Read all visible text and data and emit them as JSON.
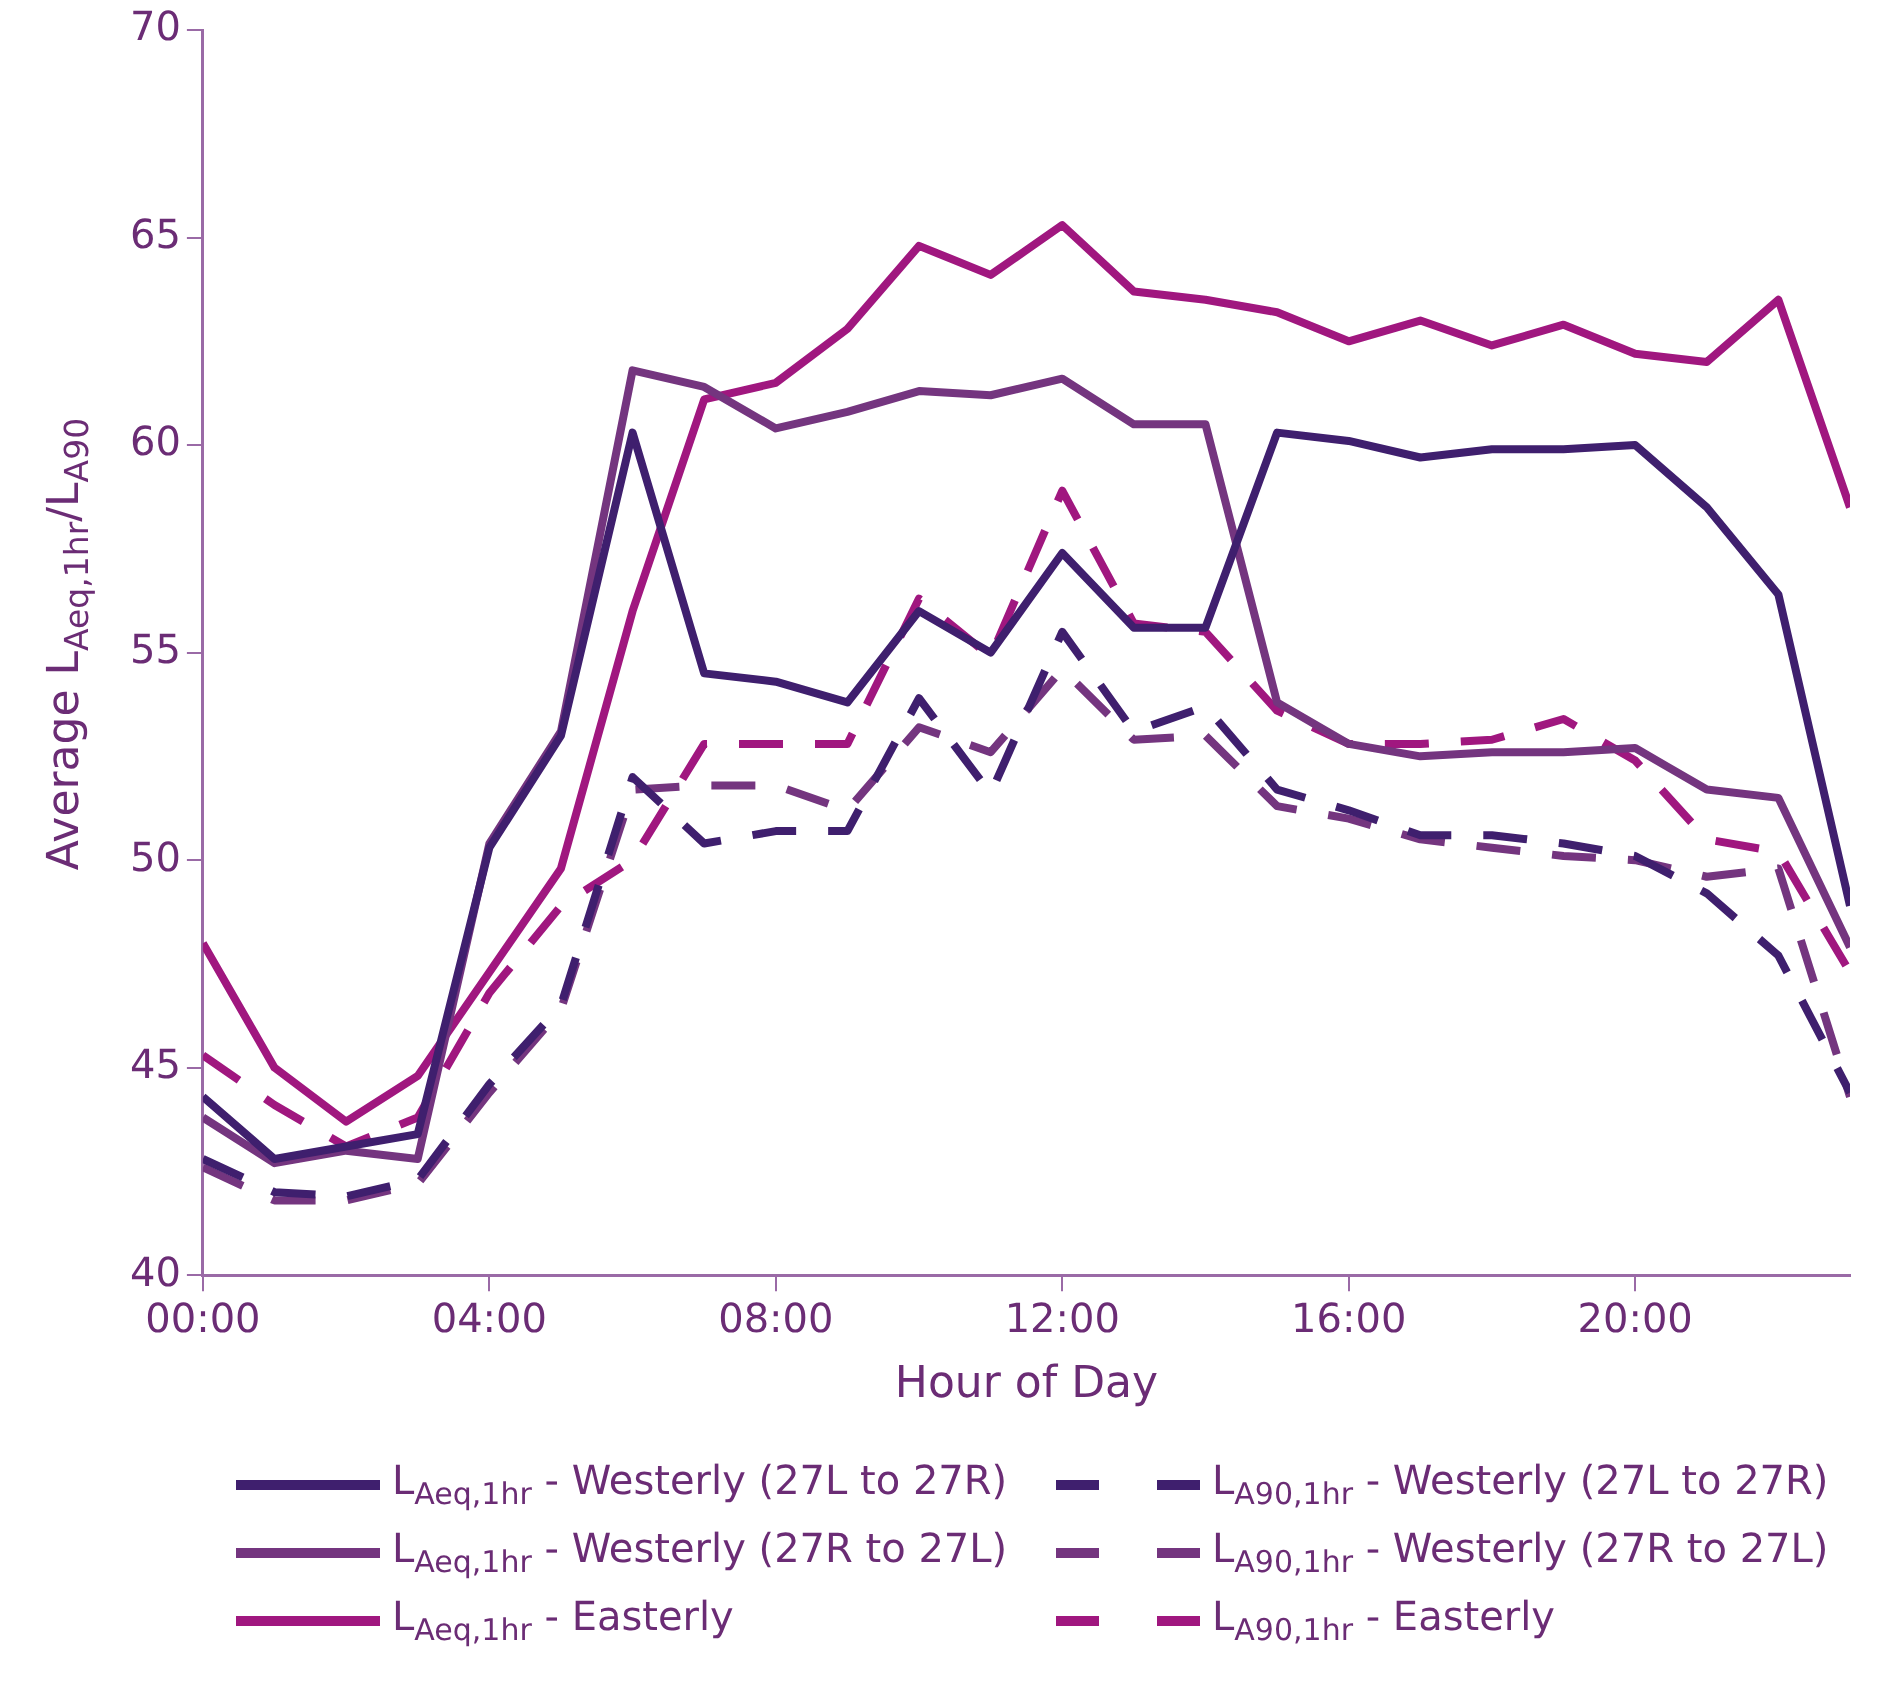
{
  "chart_data": {
    "type": "line",
    "xlabel": "Hour of Day",
    "ylabel": "Average L$_{Aeq,1hr}$/L$_{A90}$",
    "x": [
      0,
      1,
      2,
      3,
      4,
      5,
      6,
      7,
      8,
      9,
      10,
      11,
      12,
      13,
      14,
      15,
      16,
      17,
      18,
      19,
      20,
      21,
      22,
      23
    ],
    "xlim": [
      0,
      23
    ],
    "xticks": [
      {
        "value": 0,
        "label": "00:00"
      },
      {
        "value": 4,
        "label": "04:00"
      },
      {
        "value": 8,
        "label": "08:00"
      },
      {
        "value": 12,
        "label": "12:00"
      },
      {
        "value": 16,
        "label": "16:00"
      },
      {
        "value": 20,
        "label": "20:00"
      }
    ],
    "ylim": [
      40,
      70
    ],
    "yticks": [
      40,
      45,
      50,
      55,
      60,
      65,
      70
    ],
    "grid": false,
    "legend": "bottom",
    "marker": "none",
    "series": [
      {
        "name": "L$_{Aeq,1hr}$ - Westerly (27L to 27R)",
        "color": "#3f1f6e",
        "line_style": "solid",
        "values": [
          44.3,
          42.8,
          43.1,
          43.4,
          50.3,
          53.0,
          60.3,
          54.5,
          54.3,
          53.8,
          56.0,
          55.0,
          57.4,
          55.6,
          55.6,
          60.3,
          60.1,
          59.7,
          59.9,
          59.9,
          60.0,
          58.5,
          56.4,
          48.9
        ]
      },
      {
        "name": "L$_{A90,1hr}$ - Westerly (27L to 27R)",
        "color": "#3f1f6e",
        "line_style": "dashed",
        "values": [
          42.8,
          42.0,
          41.9,
          42.3,
          44.6,
          46.5,
          52.0,
          50.4,
          50.7,
          50.7,
          53.9,
          51.6,
          55.5,
          53.1,
          53.7,
          51.7,
          51.2,
          50.6,
          50.6,
          50.4,
          50.1,
          49.2,
          47.7,
          44.4
        ]
      },
      {
        "name": "L$_{Aeq,1hr}$ - Westerly (27R to 27L)",
        "color": "#74357f",
        "line_style": "solid",
        "values": [
          43.8,
          42.7,
          43.0,
          42.8,
          50.4,
          53.1,
          61.8,
          61.4,
          60.4,
          60.8,
          61.3,
          61.2,
          61.6,
          60.5,
          60.5,
          53.8,
          52.8,
          52.5,
          52.6,
          52.6,
          52.7,
          51.7,
          51.5,
          47.9
        ]
      },
      {
        "name": "L$_{A90,1hr}$ - Westerly (27R to 27L)",
        "color": "#74357f",
        "line_style": "dashed",
        "values": [
          42.6,
          41.8,
          41.8,
          42.2,
          44.4,
          46.4,
          51.7,
          51.8,
          51.8,
          51.2,
          53.2,
          52.6,
          54.6,
          52.9,
          53.0,
          51.3,
          51.0,
          50.5,
          50.3,
          50.1,
          50.0,
          49.6,
          49.8,
          44.3
        ]
      },
      {
        "name": "L$_{Aeq,1hr}$ - Easterly",
        "color": "#a0177f",
        "line_style": "solid",
        "values": [
          48.0,
          45.0,
          43.7,
          44.8,
          47.3,
          49.8,
          56.0,
          61.1,
          61.5,
          62.8,
          64.8,
          64.1,
          65.3,
          63.7,
          63.5,
          63.2,
          62.5,
          63.0,
          62.4,
          62.9,
          62.2,
          62.0,
          63.5,
          58.5
        ]
      },
      {
        "name": "L$_{A90,1hr}$ - Easterly",
        "color": "#a0177f",
        "line_style": "dashed",
        "values": [
          45.3,
          44.1,
          43.1,
          43.8,
          46.8,
          48.9,
          50.0,
          52.8,
          52.8,
          52.8,
          56.3,
          54.9,
          58.9,
          55.7,
          55.5,
          53.6,
          52.8,
          52.8,
          52.9,
          53.4,
          52.4,
          50.5,
          50.2,
          47.3
        ]
      }
    ]
  }
}
